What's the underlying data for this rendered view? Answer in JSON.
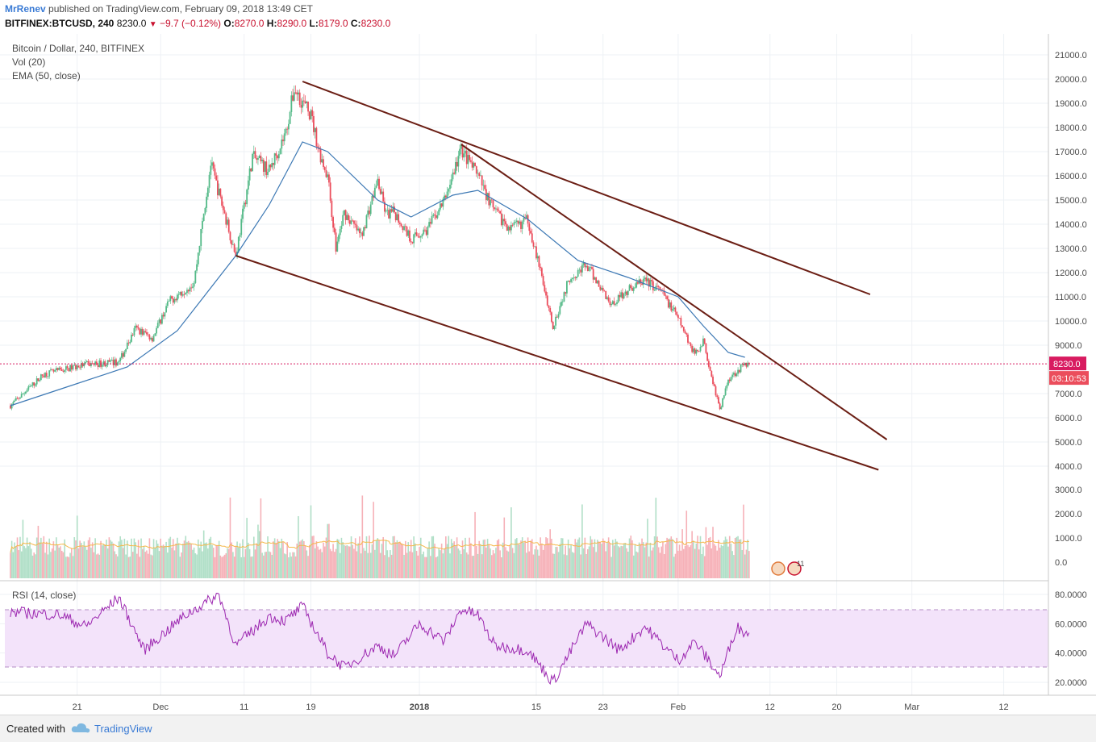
{
  "header": {
    "author": "MrRenev",
    "published": "published on TradingView.com, February 09, 2018 13:49 CET",
    "symbol": "BITFINEX:BTCUSD, 240",
    "last": "8230.0",
    "change": "−9.7 (−0.12%)",
    "o_label": "O:",
    "o_value": "8270.0",
    "h_label": "H:",
    "h_value": "8290.0",
    "l_label": "L:",
    "l_value": "8179.0",
    "c_label": "C:",
    "c_value": "8230.0"
  },
  "legend": {
    "main": "Bitcoin / Dollar, 240, BITFINEX",
    "vol": "Vol (20)",
    "ema": "EMA (50, close)",
    "rsi": "RSI (14, close)"
  },
  "price_tag": "8230.0",
  "countdown": "03:10:53",
  "events_badge": "11",
  "footer": {
    "created": "Created with",
    "brand": "TradingView"
  },
  "colors": {
    "up": "#53b987",
    "down": "#eb4d5c",
    "ema": "#3c78b4",
    "trend": "#6b1e14",
    "vol_ma": "#f5b84a",
    "rsi_line": "#9c27b0",
    "rsi_band": "#f3e3fa",
    "last_price": "#d81b60"
  },
  "chart_data": {
    "type": "candlestick",
    "title": "Bitcoin / Dollar, 240, BITFINEX",
    "x_ticks": [
      "21",
      "Dec",
      "11",
      "19",
      "2018",
      "15",
      "23",
      "Feb",
      "12",
      "20",
      "Mar",
      "12"
    ],
    "price_ticks": [
      "21000.0",
      "20000.0",
      "19000.0",
      "18000.0",
      "17000.0",
      "16000.0",
      "15000.0",
      "14000.0",
      "13000.0",
      "12000.0",
      "11000.0",
      "10000.0",
      "9000.0",
      "7000.0",
      "6000.0",
      "5000.0",
      "4000.0"
    ],
    "volume_ticks": [
      "3000.0",
      "2000.0",
      "1000.0",
      "0.0"
    ],
    "rsi_ticks": [
      "80.0000",
      "60.0000",
      "40.0000",
      "20.0000"
    ],
    "price_range": [
      4000,
      21000
    ],
    "rsi_range": [
      20,
      80
    ],
    "rsi_band": [
      30,
      70
    ],
    "last_price": 8230,
    "price_path": [
      [
        "2017-11-13",
        6500
      ],
      [
        "2017-11-17",
        7800
      ],
      [
        "2017-11-22",
        8200
      ],
      [
        "2017-11-26",
        8300
      ],
      [
        "2017-11-28",
        9700
      ],
      [
        "2017-11-30",
        9300
      ],
      [
        "2017-12-02",
        10800
      ],
      [
        "2017-12-05",
        11600
      ],
      [
        "2017-12-07",
        16500
      ],
      [
        "2017-12-09",
        14000
      ],
      [
        "2017-12-10",
        12700
      ],
      [
        "2017-12-12",
        16800
      ],
      [
        "2017-12-14",
        16200
      ],
      [
        "2017-12-16",
        17800
      ],
      [
        "2017-12-17",
        19600
      ],
      [
        "2017-12-19",
        18500
      ],
      [
        "2017-12-20",
        17000
      ],
      [
        "2017-12-21",
        16000
      ],
      [
        "2017-12-22",
        13000
      ],
      [
        "2017-12-23",
        14500
      ],
      [
        "2017-12-25",
        13500
      ],
      [
        "2017-12-27",
        15800
      ],
      [
        "2017-12-28",
        14400
      ],
      [
        "2017-12-29",
        14500
      ],
      [
        "2017-12-31",
        13400
      ],
      [
        "2018-01-02",
        13800
      ],
      [
        "2018-01-04",
        15000
      ],
      [
        "2018-01-06",
        17100
      ],
      [
        "2018-01-08",
        16000
      ],
      [
        "2018-01-10",
        14500
      ],
      [
        "2018-01-12",
        13800
      ],
      [
        "2018-01-14",
        14200
      ],
      [
        "2018-01-16",
        11300
      ],
      [
        "2018-01-17",
        9800
      ],
      [
        "2018-01-19",
        11800
      ],
      [
        "2018-01-21",
        12300
      ],
      [
        "2018-01-24",
        10700
      ],
      [
        "2018-01-26",
        11300
      ],
      [
        "2018-01-28",
        11700
      ],
      [
        "2018-01-30",
        11200
      ],
      [
        "2018-02-01",
        10100
      ],
      [
        "2018-02-03",
        8600
      ],
      [
        "2018-02-04",
        9200
      ],
      [
        "2018-02-06",
        6300
      ],
      [
        "2018-02-07",
        7600
      ],
      [
        "2018-02-09",
        8230
      ]
    ],
    "ema_path": [
      [
        "2017-11-13",
        6500
      ],
      [
        "2017-11-20",
        7300
      ],
      [
        "2017-11-27",
        8100
      ],
      [
        "2017-12-03",
        9600
      ],
      [
        "2017-12-10",
        12700
      ],
      [
        "2017-12-14",
        14800
      ],
      [
        "2017-12-18",
        17400
      ],
      [
        "2017-12-21",
        17000
      ],
      [
        "2017-12-27",
        15000
      ],
      [
        "2017-12-31",
        14300
      ],
      [
        "2018-01-05",
        15200
      ],
      [
        "2018-01-08",
        15400
      ],
      [
        "2018-01-14",
        14200
      ],
      [
        "2018-01-20",
        12500
      ],
      [
        "2018-01-26",
        11800
      ],
      [
        "2018-02-01",
        11000
      ],
      [
        "2018-02-04",
        9800
      ],
      [
        "2018-02-07",
        8700
      ],
      [
        "2018-02-09",
        8500
      ]
    ],
    "rsi_path": [
      [
        "2017-11-13",
        68
      ],
      [
        "2017-11-19",
        66
      ],
      [
        "2017-11-22",
        58
      ],
      [
        "2017-11-26",
        78
      ],
      [
        "2017-11-29",
        42
      ],
      [
        "2017-12-04",
        66
      ],
      [
        "2017-12-08",
        80
      ],
      [
        "2017-12-10",
        45
      ],
      [
        "2017-12-14",
        65
      ],
      [
        "2017-12-16",
        62
      ],
      [
        "2017-12-18",
        72
      ],
      [
        "2017-12-21",
        40
      ],
      [
        "2017-12-23",
        30
      ],
      [
        "2017-12-27",
        45
      ],
      [
        "2017-12-29",
        38
      ],
      [
        "2018-01-01",
        60
      ],
      [
        "2018-01-04",
        48
      ],
      [
        "2018-01-06",
        70
      ],
      [
        "2018-01-08",
        66
      ],
      [
        "2018-01-10",
        45
      ],
      [
        "2018-01-14",
        42
      ],
      [
        "2018-01-17",
        20
      ],
      [
        "2018-01-21",
        60
      ],
      [
        "2018-01-25",
        42
      ],
      [
        "2018-01-28",
        58
      ],
      [
        "2018-02-01",
        35
      ],
      [
        "2018-02-03",
        48
      ],
      [
        "2018-02-06",
        24
      ],
      [
        "2018-02-08",
        58
      ],
      [
        "2018-02-09",
        54
      ]
    ],
    "trendlines": [
      {
        "from": [
          "2017-12-18",
          19900
        ],
        "to": [
          "2018-02-24",
          11100
        ]
      },
      {
        "from": [
          "2018-01-06",
          17300
        ],
        "to": [
          "2018-02-26",
          5100
        ]
      },
      {
        "from": [
          "2017-12-10",
          12700
        ],
        "to": [
          "2018-02-25",
          3850
        ]
      }
    ]
  }
}
